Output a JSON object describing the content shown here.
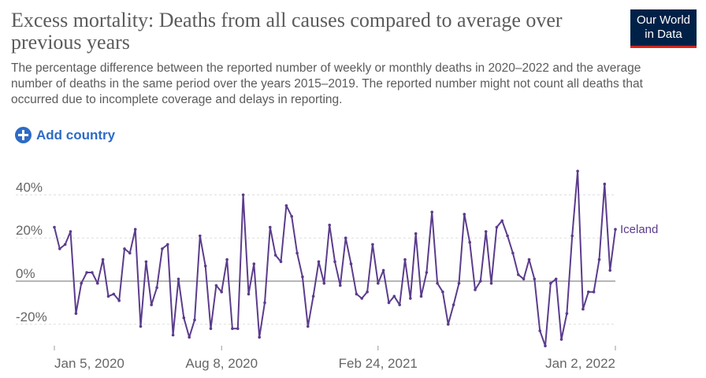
{
  "header": {
    "title": "Excess mortality: Deaths from all causes compared to average over previous years",
    "subtitle": "The percentage difference between the reported number of weekly or monthly deaths in 2020–2022 and the average number of deaths in the same period over the years 2015–2019. The reported number might not count all deaths that occurred due to incomplete coverage and delays in reporting.",
    "logo_line1": "Our World",
    "logo_line2": "in Data"
  },
  "controls": {
    "add_country_label": "Add country"
  },
  "colors": {
    "series": "#5b3c8c",
    "logo_bg": "#002147",
    "logo_accent": "#ce261e",
    "link": "#2d6bc6",
    "grid": "#dddddd",
    "zero_line": "#8a8a8a"
  },
  "chart_data": {
    "type": "line",
    "title": "Excess mortality: Deaths from all causes compared to average over previous years",
    "xlabel": "",
    "ylabel": "",
    "ylim": [
      -30,
      52
    ],
    "grid": true,
    "y_ticks": [
      -20,
      0,
      20,
      40
    ],
    "y_tick_labels": [
      "-20%",
      "0%",
      "20%",
      "40%"
    ],
    "x_tick_labels": [
      "Jan 5, 2020",
      "Aug 8, 2020",
      "Feb 24, 2021",
      "Jan 2, 2022"
    ],
    "x_tick_weeks": [
      0,
      31,
      60,
      104
    ],
    "series": [
      {
        "name": "Iceland",
        "x_unit": "weeks since Jan 5, 2020",
        "values": [
          25,
          15,
          17,
          23,
          -15,
          -1,
          4,
          4,
          -1,
          10,
          -7,
          -6,
          -9,
          15,
          13,
          24,
          -21,
          9,
          -11,
          -3,
          15,
          17,
          -25,
          1,
          -17,
          -26,
          -18,
          21,
          7,
          -22,
          -2,
          -5,
          10,
          -22,
          -22,
          40,
          -6,
          8,
          -26,
          -10,
          25,
          12,
          9,
          35,
          30,
          13,
          2,
          -21,
          -7,
          9,
          -1,
          26,
          9,
          -2,
          20,
          8,
          -6,
          -8,
          -5,
          17,
          -1,
          5,
          -10,
          -7,
          -11,
          10,
          -8,
          22,
          -7,
          4,
          32,
          -1,
          -5,
          -20,
          -11,
          -1,
          31,
          18,
          -4,
          0,
          23,
          -1,
          25,
          28,
          21,
          13,
          3,
          1,
          10,
          1,
          -23,
          -30,
          -1,
          1,
          -27,
          -15,
          21,
          51,
          -13,
          -5,
          -5,
          10,
          45,
          5,
          24
        ]
      }
    ]
  }
}
